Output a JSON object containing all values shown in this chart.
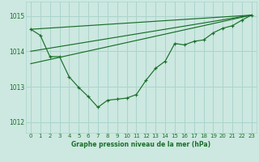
{
  "bg_color": "#cce8e0",
  "grid_color": "#aad4cc",
  "line_color": "#1a6e2a",
  "title": "Graphe pression niveau de la mer (hPa)",
  "xlim": [
    -0.5,
    23.5
  ],
  "ylim": [
    1011.7,
    1015.4
  ],
  "yticks": [
    1012,
    1013,
    1014,
    1015
  ],
  "xtick_labels": [
    "0",
    "1",
    "2",
    "3",
    "4",
    "5",
    "6",
    "7",
    "8",
    "9",
    "10",
    "11",
    "12",
    "13",
    "14",
    "15",
    "16",
    "17",
    "18",
    "19",
    "20",
    "21",
    "22",
    "23"
  ],
  "xticks": [
    0,
    1,
    2,
    3,
    4,
    5,
    6,
    7,
    8,
    9,
    10,
    11,
    12,
    13,
    14,
    15,
    16,
    17,
    18,
    19,
    20,
    21,
    22,
    23
  ],
  "main_line": {
    "x": [
      0,
      1,
      2,
      3,
      4,
      5,
      6,
      7,
      8,
      9,
      10,
      11,
      12,
      13,
      14,
      15,
      16,
      17,
      18,
      19,
      20,
      21,
      22,
      23
    ],
    "y": [
      1014.62,
      1014.45,
      1013.85,
      1013.85,
      1013.28,
      1012.98,
      1012.72,
      1012.42,
      1012.62,
      1012.65,
      1012.68,
      1012.78,
      1013.18,
      1013.52,
      1013.72,
      1014.22,
      1014.18,
      1014.28,
      1014.32,
      1014.52,
      1014.65,
      1014.72,
      1014.88,
      1015.02
    ]
  },
  "trend_line1": {
    "x": [
      0,
      23
    ],
    "y": [
      1014.62,
      1015.02
    ]
  },
  "trend_line2": {
    "x": [
      0,
      23
    ],
    "y": [
      1014.0,
      1015.02
    ]
  },
  "trend_line3": {
    "x": [
      0,
      23
    ],
    "y": [
      1013.65,
      1015.02
    ]
  }
}
